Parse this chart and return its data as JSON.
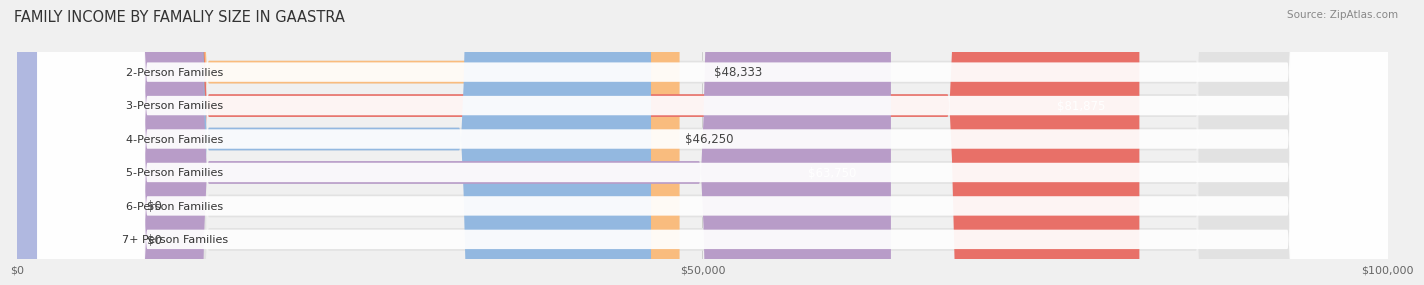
{
  "title": "FAMILY INCOME BY FAMALIY SIZE IN GAASTRA",
  "source": "Source: ZipAtlas.com",
  "categories": [
    "2-Person Families",
    "3-Person Families",
    "4-Person Families",
    "5-Person Families",
    "6-Person Families",
    "7+ Person Families"
  ],
  "values": [
    48333,
    81875,
    46250,
    63750,
    0,
    0
  ],
  "bar_colors": [
    "#f9bc7e",
    "#e87068",
    "#93b8e0",
    "#b89cc8",
    "#6ecdc0",
    "#b0b8e0"
  ],
  "label_colors": [
    "#444444",
    "#ffffff",
    "#444444",
    "#ffffff",
    "#444444",
    "#444444"
  ],
  "xmax": 100000,
  "bg_color": "#f0f0f0",
  "bar_bg_color": "#e2e2e2",
  "label_box_color": "#ffffff",
  "tick_labels": [
    "$0",
    "$50,000",
    "$100,000"
  ],
  "tick_values": [
    0,
    50000,
    100000
  ],
  "title_fontsize": 10.5,
  "bar_label_fontsize": 8.5,
  "cat_label_fontsize": 8.0
}
